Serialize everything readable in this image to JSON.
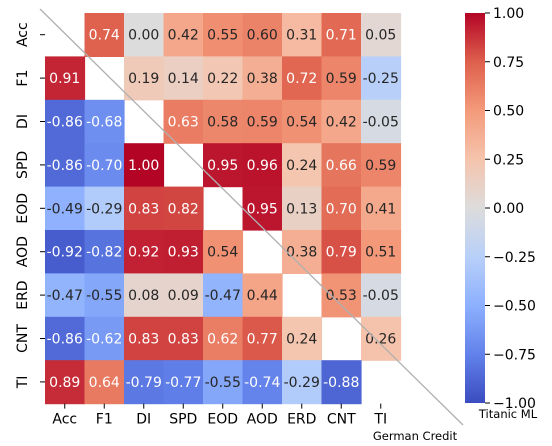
{
  "chart_data": {
    "type": "heatmap",
    "rows": [
      "Acc",
      "F1",
      "DI",
      "SPD",
      "EOD",
      "AOD",
      "ERD",
      "CNT",
      "TI"
    ],
    "cols": [
      "Acc",
      "F1",
      "DI",
      "SPD",
      "EOD",
      "AOD",
      "ERD",
      "CNT",
      "TI"
    ],
    "values": [
      [
        null,
        0.74,
        0.0,
        0.42,
        0.55,
        0.6,
        0.31,
        0.71,
        0.05
      ],
      [
        0.91,
        null,
        0.19,
        0.14,
        0.22,
        0.38,
        0.72,
        0.59,
        -0.25
      ],
      [
        -0.86,
        -0.68,
        null,
        0.63,
        0.58,
        0.59,
        0.54,
        0.42,
        -0.05
      ],
      [
        -0.86,
        -0.7,
        1.0,
        null,
        0.95,
        0.96,
        0.24,
        0.66,
        0.59
      ],
      [
        -0.49,
        -0.29,
        0.83,
        0.82,
        null,
        0.95,
        0.13,
        0.7,
        0.41
      ],
      [
        -0.92,
        -0.82,
        0.92,
        0.93,
        0.54,
        null,
        0.38,
        0.79,
        0.51
      ],
      [
        -0.47,
        -0.55,
        0.08,
        0.09,
        -0.47,
        0.44,
        null,
        0.53,
        -0.05
      ],
      [
        -0.86,
        -0.62,
        0.83,
        0.83,
        0.62,
        0.77,
        0.24,
        null,
        0.26
      ],
      [
        0.89,
        0.64,
        -0.79,
        -0.77,
        -0.55,
        -0.74,
        -0.29,
        -0.88,
        null
      ]
    ],
    "value_labels": [
      [
        "",
        "0.74",
        "0.00",
        "0.42",
        "0.55",
        "0.60",
        "0.31",
        "0.71",
        "0.05"
      ],
      [
        "0.91",
        "",
        "0.19",
        "0.14",
        "0.22",
        "0.38",
        "0.72",
        "0.59",
        "-0.25"
      ],
      [
        "-0.86",
        "-0.68",
        "",
        "0.63",
        "0.58",
        "0.59",
        "0.54",
        "0.42",
        "-0.05"
      ],
      [
        "-0.86",
        "-0.70",
        "1.00",
        "",
        "0.95",
        "0.96",
        "0.24",
        "0.66",
        "0.59"
      ],
      [
        "-0.49",
        "-0.29",
        "0.83",
        "0.82",
        "",
        "0.95",
        "0.13",
        "0.70",
        "0.41"
      ],
      [
        "-0.92",
        "-0.82",
        "0.92",
        "0.93",
        "0.54",
        "",
        "0.38",
        "0.79",
        "0.51"
      ],
      [
        "-0.47",
        "-0.55",
        "0.08",
        "0.09",
        "-0.47",
        "0.44",
        "",
        "0.53",
        "-0.05"
      ],
      [
        "-0.86",
        "-0.62",
        "0.83",
        "0.83",
        "0.62",
        "0.77",
        "0.24",
        "",
        "0.26"
      ],
      [
        "0.89",
        "0.64",
        "-0.79",
        "-0.77",
        "-0.55",
        "-0.74",
        "-0.29",
        "-0.88",
        ""
      ]
    ],
    "upper_triangle_label": "Titanic ML",
    "lower_triangle_label": "German Credit",
    "colormap": "coolwarm",
    "vmin": -1.0,
    "vmax": 1.0,
    "colorbar_ticks": [
      1.0,
      0.75,
      0.5,
      0.25,
      0.0,
      -0.25,
      -0.5,
      -0.75,
      -1.0
    ],
    "colorbar_tick_labels": [
      "1.00",
      "0.75",
      "0.50",
      "0.25",
      "0.00",
      "−0.25",
      "−0.50",
      "−0.75",
      "−1.00"
    ],
    "diagonal_line": true,
    "colorbar_position": "right"
  }
}
